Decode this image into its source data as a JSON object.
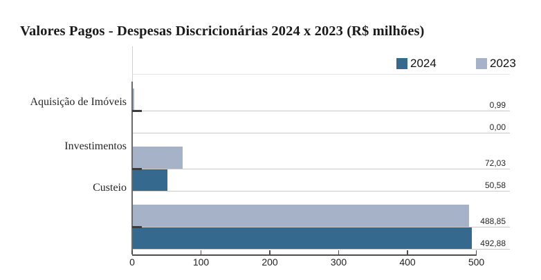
{
  "title": "Valores Pagos - Despesas Discricionárias 2024 x 2023 (R$ milhões)",
  "legend": {
    "items": [
      {
        "label": "2024",
        "color": "#35698e"
      },
      {
        "label": "2023",
        "color": "#a5b2c8"
      }
    ]
  },
  "chart_data": {
    "type": "bar",
    "orientation": "horizontal",
    "title": "Valores Pagos - Despesas Discricionárias 2024 x 2023 (R$ milhões)",
    "categories": [
      "Aquisição de Imóveis",
      "Investimentos",
      "Custeio"
    ],
    "series": [
      {
        "name": "2024",
        "color": "#35698e",
        "values": [
          0.0,
          50.58,
          492.88
        ],
        "value_labels": [
          "0,00",
          "50,58",
          "492,88"
        ]
      },
      {
        "name": "2023",
        "color": "#a5b2c8",
        "values": [
          0.99,
          72.03,
          488.85
        ],
        "value_labels": [
          "0,99",
          "72,03",
          "488,85"
        ]
      }
    ],
    "row_order_within_group": [
      "2023",
      "2024"
    ],
    "xlim": [
      0,
      500
    ],
    "x_ticks": [
      0,
      100,
      200,
      300,
      400,
      500
    ],
    "x_tick_labels": [
      "0",
      "100",
      "200",
      "300",
      "400",
      "500"
    ],
    "grid": "per-bar bottom rule lines",
    "legend_position": "top-right",
    "value_label_position": "right edge, above each bar's rule line",
    "decimal_separator": ","
  },
  "colors": {
    "bar_2024": "#35698e",
    "bar_2023": "#a5b2c8",
    "gridline": "#c9c9c9",
    "axis": "#4d4d4d",
    "text": "#262626",
    "background": "#ffffff"
  }
}
